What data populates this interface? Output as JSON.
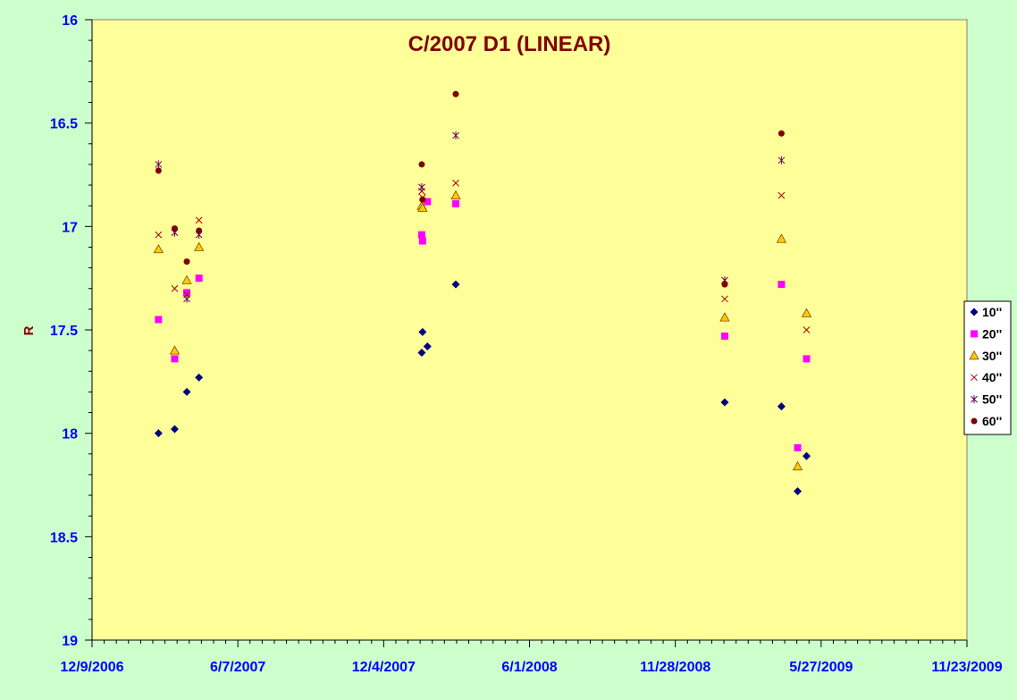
{
  "chart_data": {
    "type": "scatter",
    "title": "C/2007 D1 (LINEAR)",
    "xlabel": "",
    "ylabel": "R",
    "x_is_date": true,
    "xlim": [
      "12/9/2006",
      "11/23/2009"
    ],
    "x_ticks": [
      "12/9/2006",
      "6/7/2007",
      "12/4/2007",
      "6/1/2008",
      "11/28/2008",
      "5/27/2009",
      "11/23/2009"
    ],
    "ylim": [
      16,
      19
    ],
    "y_reversed": true,
    "y_ticks": [
      "16",
      "16.5",
      "17",
      "17.5",
      "18",
      "18.5",
      "19"
    ],
    "grid": false,
    "legend_position": "right",
    "colors": {
      "page_background": "#ccffcc",
      "plot_background": "#ffff99",
      "title": "#800000",
      "tick_labels": "#0000ff",
      "ylabel": "#800000"
    },
    "series": [
      {
        "name": "10''",
        "marker": "diamond",
        "color": "#000080",
        "points": [
          [
            "2007-03-01",
            18.0
          ],
          [
            "2007-03-21",
            17.98
          ],
          [
            "2007-04-05",
            17.8
          ],
          [
            "2007-04-20",
            17.73
          ],
          [
            "2008-01-20",
            17.61
          ],
          [
            "2008-01-21",
            17.51
          ],
          [
            "2008-01-27",
            17.58
          ],
          [
            "2008-03-02",
            17.28
          ],
          [
            "2009-01-28",
            17.85
          ],
          [
            "2009-04-08",
            17.87
          ],
          [
            "2009-04-28",
            18.28
          ],
          [
            "2009-05-09",
            18.11
          ]
        ]
      },
      {
        "name": "20''",
        "marker": "square",
        "color": "#ff00ff",
        "points": [
          [
            "2007-03-01",
            17.45
          ],
          [
            "2007-03-21",
            17.64
          ],
          [
            "2007-04-05",
            17.32
          ],
          [
            "2007-04-20",
            17.25
          ],
          [
            "2008-01-20",
            17.04
          ],
          [
            "2008-01-21",
            17.07
          ],
          [
            "2008-01-27",
            16.88
          ],
          [
            "2008-03-02",
            16.89
          ],
          [
            "2009-01-28",
            17.53
          ],
          [
            "2009-04-08",
            17.28
          ],
          [
            "2009-04-28",
            18.07
          ],
          [
            "2009-05-09",
            17.64
          ]
        ]
      },
      {
        "name": "30''",
        "marker": "triangle",
        "color": "#ffcc00",
        "points": [
          [
            "2007-03-01",
            17.11
          ],
          [
            "2007-03-21",
            17.6
          ],
          [
            "2007-04-05",
            17.26
          ],
          [
            "2007-04-20",
            17.1
          ],
          [
            "2008-01-20",
            16.9
          ],
          [
            "2008-01-21",
            16.91
          ],
          [
            "2008-03-02",
            16.85
          ],
          [
            "2009-01-28",
            17.44
          ],
          [
            "2009-04-08",
            17.06
          ],
          [
            "2009-04-28",
            18.16
          ],
          [
            "2009-05-09",
            17.42
          ]
        ]
      },
      {
        "name": "40''",
        "marker": "x",
        "color": "#b00000",
        "points": [
          [
            "2007-03-01",
            17.04
          ],
          [
            "2007-03-21",
            17.3
          ],
          [
            "2007-04-05",
            17.33
          ],
          [
            "2007-04-20",
            16.97
          ],
          [
            "2008-01-20",
            16.83
          ],
          [
            "2008-01-21",
            16.86
          ],
          [
            "2008-03-02",
            16.79
          ],
          [
            "2009-01-28",
            17.35
          ],
          [
            "2009-04-08",
            16.85
          ],
          [
            "2009-05-09",
            17.5
          ]
        ]
      },
      {
        "name": "50''",
        "marker": "star",
        "color": "#660066",
        "points": [
          [
            "2007-03-01",
            16.7
          ],
          [
            "2007-03-21",
            17.03
          ],
          [
            "2007-04-05",
            17.35
          ],
          [
            "2007-04-20",
            17.04
          ],
          [
            "2008-01-20",
            16.81
          ],
          [
            "2008-03-02",
            16.56
          ],
          [
            "2009-01-28",
            17.26
          ],
          [
            "2009-04-08",
            16.68
          ]
        ]
      },
      {
        "name": "60''",
        "marker": "circle",
        "color": "#800000",
        "points": [
          [
            "2007-03-01",
            16.73
          ],
          [
            "2007-03-21",
            17.01
          ],
          [
            "2007-04-05",
            17.17
          ],
          [
            "2007-04-20",
            17.02
          ],
          [
            "2008-01-20",
            16.7
          ],
          [
            "2008-01-21",
            16.87
          ],
          [
            "2008-03-02",
            16.36
          ],
          [
            "2009-01-28",
            17.28
          ],
          [
            "2009-04-08",
            16.55
          ]
        ]
      }
    ]
  }
}
